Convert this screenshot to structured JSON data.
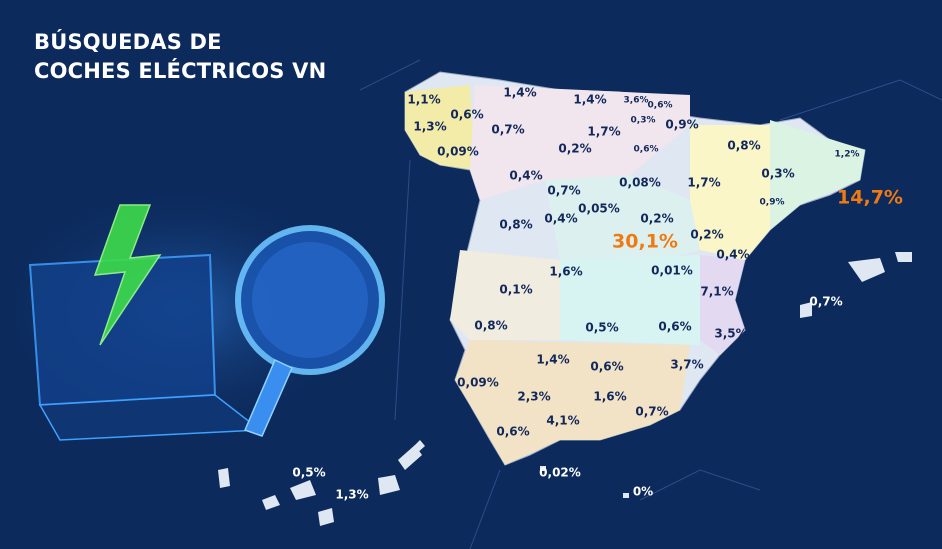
{
  "title": {
    "lines": [
      "BÚSQUEDAS DE",
      "COCHES ELÉCTRICOS VN"
    ]
  },
  "labels": [
    {
      "text": "1,1%"
    },
    {
      "text": "0,6%"
    },
    {
      "text": "1,3%"
    },
    {
      "text": "0,09%"
    },
    {
      "text": "1,4%"
    },
    {
      "text": "1,4%"
    },
    {
      "text": "3,6%"
    },
    {
      "text": "0,6%"
    },
    {
      "text": "0,3%"
    },
    {
      "text": "0,7%"
    },
    {
      "text": "1,7%"
    },
    {
      "text": "0,9%"
    },
    {
      "text": "0,6%"
    },
    {
      "text": "0,2%"
    },
    {
      "text": "0,8%"
    },
    {
      "text": "1,2%"
    },
    {
      "text": "0,4%"
    },
    {
      "text": "0,7%"
    },
    {
      "text": "0,08%"
    },
    {
      "text": "1,7%"
    },
    {
      "text": "0,3%"
    },
    {
      "text": "0,9%"
    },
    {
      "text": "14,7%"
    },
    {
      "text": "0,05%"
    },
    {
      "text": "0,8%"
    },
    {
      "text": "0,4%"
    },
    {
      "text": "0,2%"
    },
    {
      "text": "30,1%"
    },
    {
      "text": "0,2%"
    },
    {
      "text": "0,4%"
    },
    {
      "text": "1,6%"
    },
    {
      "text": "0,01%"
    },
    {
      "text": "0,1%"
    },
    {
      "text": "7,1%"
    },
    {
      "text": "0,7%"
    },
    {
      "text": "0,8%"
    },
    {
      "text": "0,5%"
    },
    {
      "text": "0,6%"
    },
    {
      "text": "3,5%"
    },
    {
      "text": "1,4%"
    },
    {
      "text": "0,6%"
    },
    {
      "text": "3,7%"
    },
    {
      "text": "0,09%"
    },
    {
      "text": "2,3%"
    },
    {
      "text": "1,6%"
    },
    {
      "text": "4,1%"
    },
    {
      "text": "0,7%"
    },
    {
      "text": "0,6%"
    },
    {
      "text": "0,02%"
    },
    {
      "text": "0%"
    },
    {
      "text": "0,5%"
    },
    {
      "text": "1,3%"
    }
  ]
}
